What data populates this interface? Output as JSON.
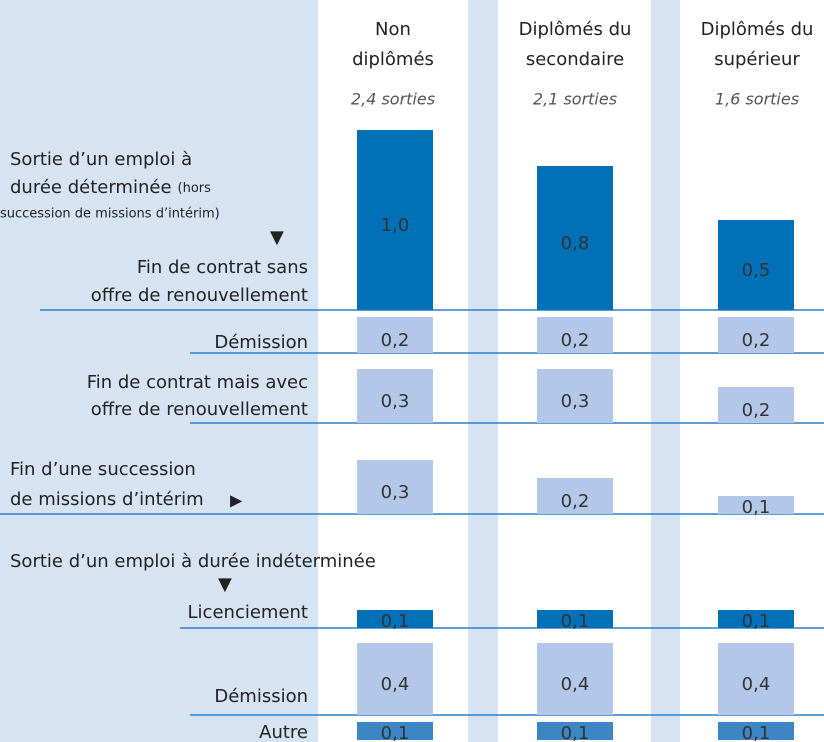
{
  "chart_data": {
    "type": "bar",
    "annotations": [
      {
        "title": [
          "Sortie d’un emploi à",
          "durée déterminée"
        ],
        "note": [
          "(hors",
          "succession de missions d’intérim)"
        ]
      },
      {
        "title": [
          "Sortie d’un emploi à durée indéterminée"
        ]
      }
    ],
    "categories": [
      [
        "Fin de contrat sans",
        "offre de renouvellement"
      ],
      [
        "Démission"
      ],
      [
        "Fin de contrat mais avec",
        "offre de renouvellement"
      ],
      [
        "Fin d’une succession",
        "de missions d’intérim"
      ],
      [
        "Licenciement"
      ],
      [
        "Démission"
      ],
      [
        "Autre"
      ]
    ],
    "colors": [
      "#0070b9",
      "#b3c8e8",
      "#b3c8e8",
      "#b3c8e8",
      "#0070b9",
      "#b3c8e8",
      "#3d86c6"
    ],
    "series": [
      {
        "name": [
          "Non",
          "diplômés"
        ],
        "subtitle": "2,4 sorties",
        "values": [
          1.0,
          0.2,
          0.3,
          0.3,
          0.1,
          0.4,
          0.1
        ],
        "value_labels": [
          "1,0",
          "0,2",
          "0,3",
          "0,3",
          "0,1",
          "0,4",
          "0,1"
        ]
      },
      {
        "name": [
          "Diplômés du",
          "secondaire"
        ],
        "subtitle": "2,1 sorties",
        "values": [
          0.8,
          0.2,
          0.3,
          0.2,
          0.1,
          0.4,
          0.1
        ],
        "value_labels": [
          "0,8",
          "0,2",
          "0,3",
          "0,2",
          "0,1",
          "0,4",
          "0,1"
        ]
      },
      {
        "name": [
          "Diplômés du",
          "supérieur"
        ],
        "subtitle": "1,6 sorties",
        "values": [
          0.5,
          0.2,
          0.2,
          0.1,
          0.1,
          0.4,
          0.1
        ],
        "value_labels": [
          "0,5",
          "0,2",
          "0,2",
          "0,1",
          "0,1",
          "0,4",
          "0,1"
        ]
      }
    ]
  }
}
